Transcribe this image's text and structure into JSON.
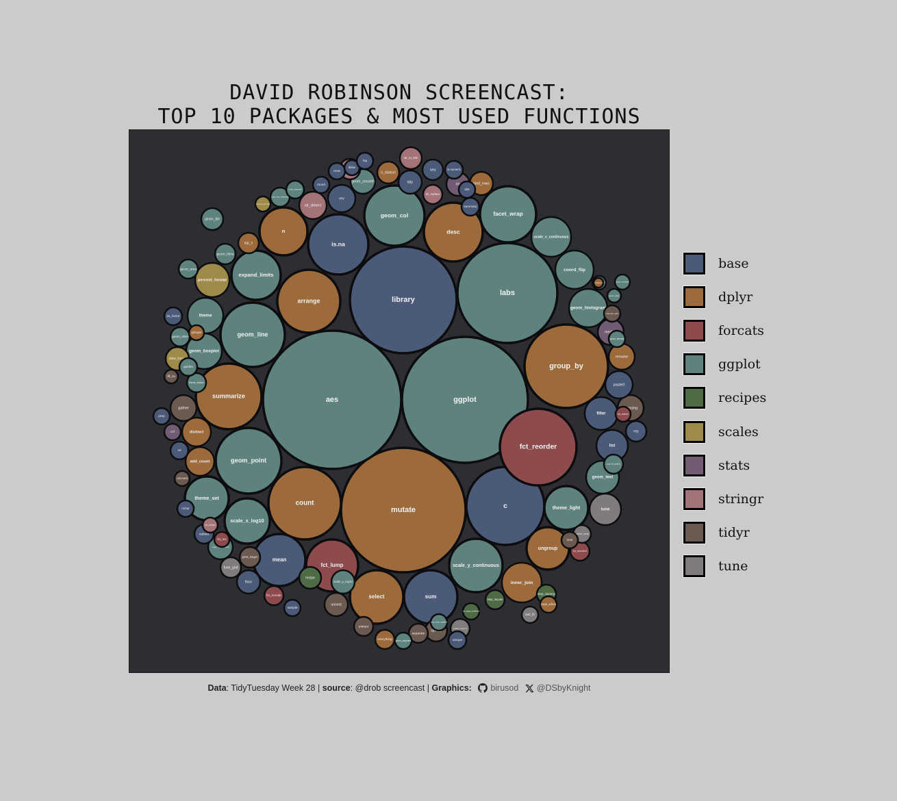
{
  "chart_data": {
    "type": "bubble",
    "title_line1": "DAVID ROBINSON SCREENCAST:",
    "title_line2": "TOP 10 PACKAGES & MOST USED FUNCTIONS",
    "legend": [
      {
        "name": "base",
        "color": "#4a5a78"
      },
      {
        "name": "dplyr",
        "color": "#9c6a3b"
      },
      {
        "name": "forcats",
        "color": "#8e4b4e"
      },
      {
        "name": "ggplot",
        "color": "#5e827e"
      },
      {
        "name": "recipes",
        "color": "#4e6b46"
      },
      {
        "name": "scales",
        "color": "#9e8b4a"
      },
      {
        "name": "stats",
        "color": "#725c73"
      },
      {
        "name": "stringr",
        "color": "#a47378"
      },
      {
        "name": "tidyr",
        "color": "#6b5a50"
      },
      {
        "name": "tune",
        "color": "#7f7c7b"
      }
    ],
    "bubbles": [
      {
        "label": "mutate",
        "pkg": "dplyr"
      },
      {
        "label": "aes",
        "pkg": "ggplot"
      },
      {
        "label": "ggplot",
        "pkg": "ggplot"
      },
      {
        "label": "library",
        "pkg": "base"
      },
      {
        "label": "labs",
        "pkg": "ggplot"
      },
      {
        "label": "group_by",
        "pkg": "dplyr"
      },
      {
        "label": "c",
        "pkg": "base"
      },
      {
        "label": "fct_reorder",
        "pkg": "forcats"
      },
      {
        "label": "count",
        "pkg": "dplyr"
      },
      {
        "label": "summarize",
        "pkg": "dplyr"
      },
      {
        "label": "geom_point",
        "pkg": "ggplot"
      },
      {
        "label": "geom_line",
        "pkg": "ggplot"
      },
      {
        "label": "arrange",
        "pkg": "dplyr"
      },
      {
        "label": "is.na",
        "pkg": "base"
      },
      {
        "label": "desc",
        "pkg": "dplyr"
      },
      {
        "label": "geom_col",
        "pkg": "ggplot"
      },
      {
        "label": "facet_wrap",
        "pkg": "ggplot"
      },
      {
        "label": "mean",
        "pkg": "base"
      },
      {
        "label": "fct_lump",
        "pkg": "forcats"
      },
      {
        "label": "select",
        "pkg": "dplyr"
      },
      {
        "label": "sum",
        "pkg": "base"
      },
      {
        "label": "scale_y_continuous",
        "pkg": "ggplot"
      },
      {
        "label": "ungroup",
        "pkg": "dplyr"
      },
      {
        "label": "theme_light",
        "pkg": "ggplot"
      },
      {
        "label": "inner_join",
        "pkg": "dplyr"
      },
      {
        "label": "scale_x_log10",
        "pkg": "ggplot"
      },
      {
        "label": "theme_set",
        "pkg": "ggplot"
      },
      {
        "label": "expand_limits",
        "pkg": "ggplot"
      },
      {
        "label": "n",
        "pkg": "dplyr"
      },
      {
        "label": "scale_x_continuous",
        "pkg": "ggplot"
      },
      {
        "label": "coord_flip",
        "pkg": "ggplot"
      },
      {
        "label": "geom_histogram",
        "pkg": "ggplot"
      },
      {
        "label": "theme",
        "pkg": "ggplot"
      },
      {
        "label": "geom_boxplot",
        "pkg": "ggplot"
      },
      {
        "label": "percent_format",
        "pkg": "scales"
      },
      {
        "label": "add_count",
        "pkg": "dplyr"
      },
      {
        "label": "distinct",
        "pkg": "dplyr"
      },
      {
        "label": "gather",
        "pkg": "tidyr"
      },
      {
        "label": "geom_text",
        "pkg": "ggplot"
      },
      {
        "label": "tune",
        "pkg": "tune"
      },
      {
        "label": "str_detect",
        "pkg": "stringr"
      },
      {
        "label": "filter",
        "pkg": "base"
      },
      {
        "label": "list",
        "pkg": "base"
      },
      {
        "label": "crossing",
        "pkg": "tidyr"
      },
      {
        "label": "paste0",
        "pkg": "base"
      },
      {
        "label": "rename",
        "pkg": "dplyr"
      },
      {
        "label": "median",
        "pkg": "stats"
      },
      {
        "label": "rep",
        "pkg": "base"
      },
      {
        "label": "rev",
        "pkg": "base"
      },
      {
        "label": "tidy",
        "pkg": "base"
      },
      {
        "label": "geom_smooth",
        "pkg": "ggplot"
      },
      {
        "label": "n_distinct",
        "pkg": "dplyr"
      },
      {
        "label": "str_to_title",
        "pkg": "stringr"
      },
      {
        "label": "seq",
        "pkg": "base"
      },
      {
        "label": "str_replace",
        "pkg": "stringr"
      },
      {
        "label": "lm",
        "pkg": "stats"
      },
      {
        "label": "bind_rows",
        "pkg": "dplyr"
      },
      {
        "label": "scale_y_log10",
        "pkg": "ggplot"
      },
      {
        "label": "floor",
        "pkg": "base"
      },
      {
        "label": "recipe",
        "pkg": "recipes"
      },
      {
        "label": "spread",
        "pkg": "tidyr"
      },
      {
        "label": "unnest",
        "pkg": "tidyr"
      },
      {
        "label": "separate",
        "pkg": "tidyr"
      },
      {
        "label": "fct_reorder2",
        "pkg": "forcats"
      },
      {
        "label": "select_best",
        "pkg": "tune"
      },
      {
        "label": "collect_metrics",
        "pkg": "tune"
      },
      {
        "label": "scale_fill_gradient2",
        "pkg": "ggplot"
      },
      {
        "label": "pivot_longer",
        "pkg": "tidyr"
      },
      {
        "label": "tune_grid",
        "pkg": "tune"
      },
      {
        "label": "step_dummy",
        "pkg": "recipes"
      },
      {
        "label": "dollar_format",
        "pkg": "scales"
      },
      {
        "label": "geom_vline",
        "pkg": "ggplot"
      },
      {
        "label": "as_factor",
        "pkg": "base"
      },
      {
        "label": "geom_area",
        "pkg": "ggplot"
      },
      {
        "label": "geom_tile",
        "pkg": "ggplot"
      },
      {
        "label": "geom_hline",
        "pkg": "ggplot"
      },
      {
        "label": "top_n",
        "pkg": "dplyr"
      },
      {
        "label": "str_c",
        "pkg": "stringr"
      },
      {
        "label": "comma_format",
        "pkg": "scales"
      },
      {
        "label": "scale_size_continuous",
        "pkg": "ggplot"
      },
      {
        "label": "coord_cartesian",
        "pkg": "ggplot"
      },
      {
        "label": "round",
        "pkg": "base"
      },
      {
        "label": "nrow",
        "pkg": "base"
      },
      {
        "label": "ifelse",
        "pkg": "base"
      },
      {
        "label": "log",
        "pkg": "base"
      },
      {
        "label": "is.numeric",
        "pkg": "base"
      },
      {
        "label": "abs",
        "pkg": "base"
      },
      {
        "label": "summary",
        "pkg": "base"
      },
      {
        "label": "nest",
        "pkg": "tidyr"
      },
      {
        "label": "fct_relevel",
        "pkg": "forcats"
      },
      {
        "label": "rsample_split",
        "pkg": "tidyr"
      },
      {
        "label": "geom_jitter",
        "pkg": "ggplot"
      },
      {
        "label": "geom_errorbar",
        "pkg": "ggplot"
      },
      {
        "label": "theme_void",
        "pkg": "ggplot"
      },
      {
        "label": "geom_density",
        "pkg": "ggplot"
      },
      {
        "label": "scale_fill_gradient",
        "pkg": "ggplot"
      },
      {
        "label": "coalesce",
        "pkg": "dplyr"
      },
      {
        "label": "case_when",
        "pkg": "dplyr"
      },
      {
        "label": "last_fit",
        "pkg": "tune"
      },
      {
        "label": "set_engine_predictors",
        "pkg": "recipes"
      },
      {
        "label": "step_impute",
        "pkg": "recipes"
      },
      {
        "label": "prep",
        "pkg": "base"
      },
      {
        "label": "ccf",
        "pkg": "stats"
      },
      {
        "label": "sd",
        "pkg": "base"
      },
      {
        "label": "uncount",
        "pkg": "tidyr"
      },
      {
        "label": "subset",
        "pkg": "base"
      },
      {
        "label": "str_extract",
        "pkg": "stringr"
      },
      {
        "label": "fct_rev",
        "pkg": "forcats"
      },
      {
        "label": "fct_recode",
        "pkg": "forcats"
      },
      {
        "label": "sample",
        "pkg": "base"
      },
      {
        "label": "extract",
        "pkg": "tidyr"
      },
      {
        "label": "everything",
        "pkg": "dplyr"
      },
      {
        "label": "geom_segment",
        "pkg": "ggplot"
      },
      {
        "label": "scale_colour_gradient",
        "pkg": "ggplot"
      },
      {
        "label": "unique",
        "pkg": "base"
      },
      {
        "label": "theme_classic",
        "pkg": "ggplot"
      },
      {
        "label": "guides",
        "pkg": "ggplot"
      },
      {
        "label": "glimpse",
        "pkg": "dplyr"
      },
      {
        "label": "fill_na",
        "pkg": "tidyr"
      },
      {
        "label": "nchar",
        "pkg": "base"
      },
      {
        "label": "print",
        "pkg": "base"
      }
    ]
  },
  "caption": {
    "data_label": "Data",
    "data_text": ": TidyTuesday Week 28 | ",
    "source_label": "source",
    "source_text": ": @drob screencast | ",
    "graphics_label": "Graphics:",
    "github_handle": "birusod",
    "x_handle": "@DSbyKnight",
    "github_icon": "github-icon",
    "x_icon": "x-icon"
  }
}
